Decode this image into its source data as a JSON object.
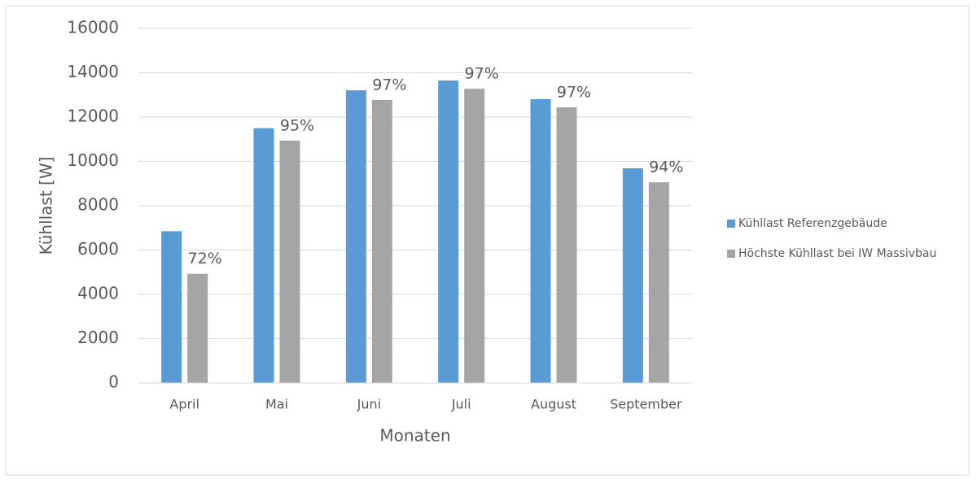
{
  "chart_data": {
    "type": "bar",
    "categories": [
      "April",
      "Mai",
      "Juni",
      "Juli",
      "August",
      "September"
    ],
    "series": [
      {
        "name": "Kühllast Referenzgebäude",
        "color": "#5b9bd5",
        "values": [
          6850,
          11500,
          13210,
          13650,
          12810,
          9690
        ]
      },
      {
        "name": "Höchste Kühllast bei IW Massivbau",
        "color": "#a5a5a5",
        "values": [
          4930,
          10940,
          12770,
          13280,
          12440,
          9060
        ],
        "annotations": [
          "72%",
          "95%",
          "97%",
          "97%",
          "97%",
          "94%"
        ]
      }
    ],
    "ylim": [
      0,
      16000
    ],
    "yticks": [
      0,
      2000,
      4000,
      6000,
      8000,
      10000,
      12000,
      14000,
      16000
    ],
    "grid": true,
    "legend": "right",
    "xlabel": "Monaten",
    "ylabel": "Kühllast [W]"
  }
}
